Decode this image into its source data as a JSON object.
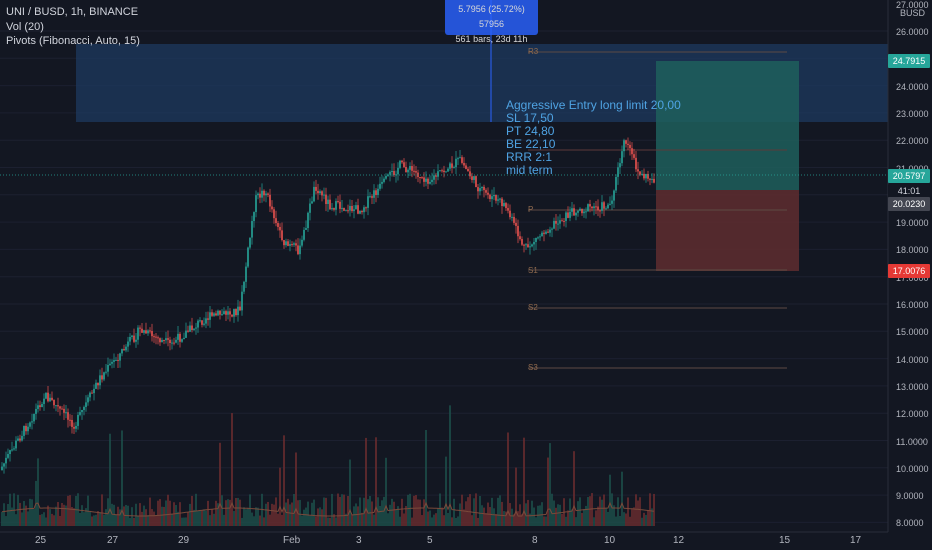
{
  "header": {
    "symbol_line": "UNI / BUSD, 1h, BINANCE",
    "vol_line": "Vol (20)",
    "pivots_line": "Pivots (Fibonacci, Auto, 15)"
  },
  "measure_tooltip": {
    "line1": "5.7956 (25.72%) 57956",
    "line2": "561 bars, 23d 11h"
  },
  "note_lines": [
    "Aggressive Entry long limit 20,00",
    "SL 17,50",
    "PT 24,80",
    "BE 22,10",
    "RRR 2:1",
    "mid term"
  ],
  "price_axis": {
    "currency_line1": "27.0000",
    "currency_line2": "BUSD",
    "ticks": [
      "26.0000",
      "25.0000",
      "24.0000",
      "23.0000",
      "22.0000",
      "21.0000",
      "20.0000",
      "19.0000",
      "18.0000",
      "17.0000",
      "16.0000",
      "15.0000",
      "14.0000",
      "13.0000",
      "12.0000",
      "11.0000",
      "10.0000",
      "9.0000",
      "8.0000"
    ],
    "tags": {
      "target": "24.7915",
      "current": "20.5797",
      "countdown": "41:01",
      "entry": "20.0230",
      "stop": "17.0076"
    }
  },
  "time_axis": [
    "25",
    "27",
    "29",
    "Feb",
    "3",
    "5",
    "8",
    "10",
    "12",
    "15",
    "17"
  ],
  "pivot_labels": [
    "R3",
    "P",
    "S1",
    "S2",
    "S3"
  ],
  "colors": {
    "background": "#131722",
    "up": "#26a69a",
    "down": "#ef5350",
    "target_zone": "#1f5f5c",
    "stop_zone": "#5b2b2f",
    "measure_zone": "#1e3a5f",
    "current_price": "#26a69a",
    "stop_tag": "#e53935"
  }
}
